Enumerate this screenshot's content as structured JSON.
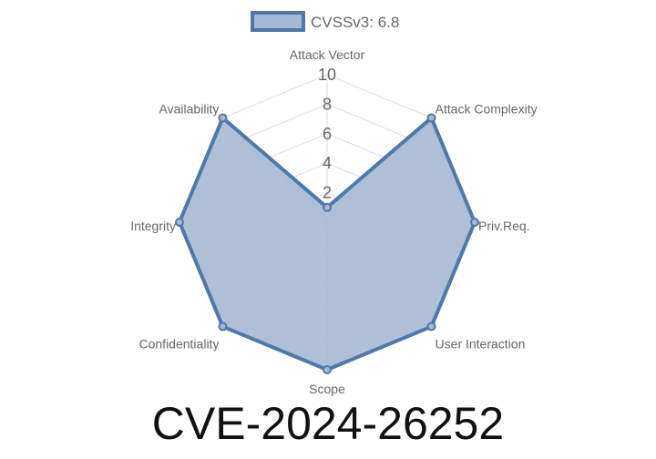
{
  "chart_data": {
    "type": "radar",
    "title": "CVE-2024-26252",
    "axes": [
      "Attack Vector",
      "Attack Complexity",
      "Priv.Req.",
      "User Interaction",
      "Scope",
      "Confidentiality",
      "Integrity",
      "Availability"
    ],
    "series": [
      {
        "name": "CVSSv3: 6.8",
        "values": [
          1,
          10,
          10,
          10,
          10,
          10,
          10,
          10
        ]
      }
    ],
    "rlim": [
      0,
      10
    ],
    "ticks": [
      "2",
      "4",
      "6",
      "8",
      "10"
    ],
    "grid": true,
    "legend_position": "top",
    "colors": {
      "line": "#4e79a7",
      "fill": "#a5b9d3",
      "grid": "#dddddd"
    }
  }
}
